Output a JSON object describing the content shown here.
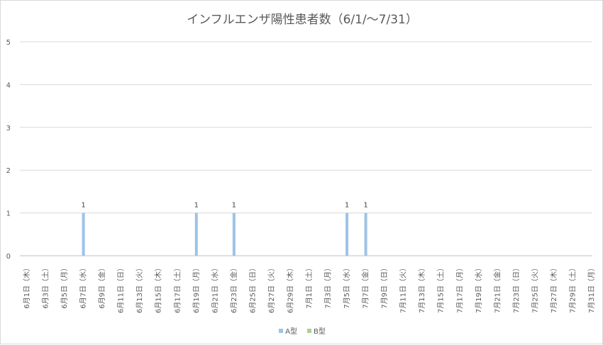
{
  "chart_data": {
    "type": "bar",
    "title": "インフルエンザ陽性患者数（6/1/～7/31）",
    "ylim": [
      0,
      5
    ],
    "yticks": [
      0,
      1,
      2,
      3,
      4,
      5
    ],
    "grid": true,
    "legend_position": "bottom",
    "categories": [
      "6月1日（木）",
      "6月3日（土）",
      "6月5日（月）",
      "6月7日（水）",
      "6月9日（金）",
      "6月11日（日）",
      "6月13日（火）",
      "6月15日（木）",
      "6月17日（土）",
      "6月19日（月）",
      "6月21日（水）",
      "6月23日（金）",
      "6月25日（日）",
      "6月27日（火）",
      "6月29日（木）",
      "7月1日（土）",
      "7月3日（月）",
      "7月5日（水）",
      "7月7日（金）",
      "7月9日（日）",
      "7月11日（火）",
      "7月13日（木）",
      "7月15日（土）",
      "7月17日（月）",
      "7月19日（水）",
      "7月21日（金）",
      "7月23日（日）",
      "7月25日（火）",
      "7月27日（木）",
      "7月29日（土）",
      "7月31日（月）"
    ],
    "bars": [
      {
        "date": "6月7日（水）",
        "series": "A型",
        "value": 1
      },
      {
        "date": "6月19日（月）",
        "series": "A型",
        "value": 1
      },
      {
        "date": "6月23日（金）",
        "series": "A型",
        "value": 1
      },
      {
        "date": "7月5日（水）",
        "series": "A型",
        "value": 1
      },
      {
        "date": "7月7日（金）",
        "series": "A型",
        "value": 1
      }
    ],
    "series": [
      {
        "name": "A型",
        "color": "#9dc3e6"
      },
      {
        "name": "B型",
        "color": "#a9d18e"
      }
    ]
  }
}
